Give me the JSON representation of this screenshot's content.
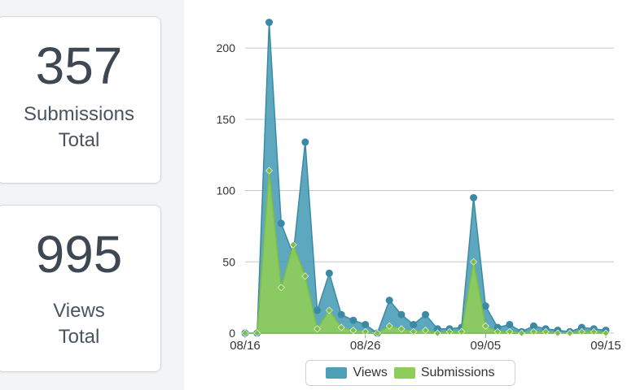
{
  "stats": [
    {
      "value": "357",
      "label_line1": "Submissions",
      "label_line2": "Total"
    },
    {
      "value": "995",
      "label_line1": "Views",
      "label_line2": "Total"
    }
  ],
  "colors": {
    "views_fill": "#4d9fb8",
    "views_line": "#3a8aa6",
    "submissions_fill": "#8fcd5a",
    "submissions_line": "#7dbd45",
    "grid": "#c8c8c8",
    "axis_text": "#333333"
  },
  "chart_data": {
    "type": "area",
    "x_tick_labels": [
      "08/16",
      "08/26",
      "09/05",
      "09/15"
    ],
    "x_ticks_day_index": [
      0,
      10,
      20,
      30
    ],
    "ylim": [
      0,
      220
    ],
    "y_ticks": [
      0,
      50,
      100,
      150,
      200
    ],
    "grid": "horizontal",
    "legend": "bottom-center",
    "series": [
      {
        "name": "Views",
        "values": [
          0,
          0,
          218,
          77,
          55,
          134,
          16,
          42,
          13,
          9,
          6,
          0,
          23,
          13,
          6,
          13,
          3,
          3,
          4,
          95,
          19,
          4,
          6,
          1,
          5,
          3,
          2,
          1,
          4,
          3,
          2
        ]
      },
      {
        "name": "Submissions",
        "values": [
          0,
          0,
          114,
          32,
          62,
          40,
          3,
          16,
          4,
          2,
          1,
          0,
          5,
          3,
          1,
          2,
          0,
          1,
          1,
          50,
          5,
          1,
          1,
          0,
          1,
          1,
          0,
          0,
          1,
          1,
          0
        ]
      }
    ]
  }
}
